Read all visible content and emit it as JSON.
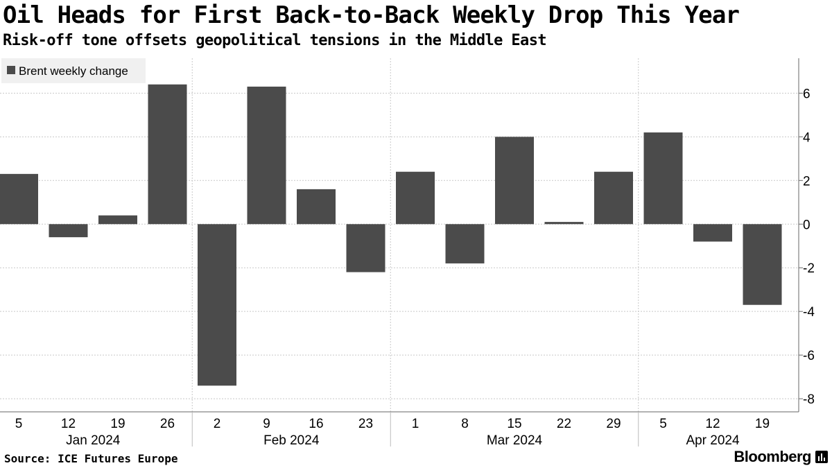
{
  "page": {
    "title": "Oil Heads for First Back-to-Back Weekly Drop This Year",
    "subtitle": "Risk-off tone offsets geopolitical tensions in the Middle East",
    "source": "Source: ICE Futures Europe",
    "brand": "Bloomberg"
  },
  "colors": {
    "bar": "#4b4b4b",
    "legend_bg": "#f0f0f0",
    "grid": "#c8c8c8",
    "axis": "#666666"
  },
  "chart_data": {
    "type": "bar",
    "title": "Oil Heads for First Back-to-Back Weekly Drop This Year",
    "subtitle": "Risk-off tone offsets geopolitical tensions in the Middle East",
    "series": [
      {
        "name": "Brent weekly change",
        "values": [
          2.3,
          -0.6,
          0.4,
          6.4,
          -7.4,
          6.3,
          1.6,
          -2.2,
          2.4,
          -1.8,
          4.0,
          0.1,
          2.4,
          4.2,
          -0.8,
          -3.7
        ]
      }
    ],
    "categories": [
      "5",
      "12",
      "19",
      "26",
      "2",
      "9",
      "16",
      "23",
      "1",
      "8",
      "15",
      "22",
      "29",
      "5",
      "12",
      "19"
    ],
    "month_labels": [
      {
        "label": "Jan 2024",
        "first_index": 0,
        "last_index": 3
      },
      {
        "label": "Feb 2024",
        "first_index": 4,
        "last_index": 7
      },
      {
        "label": "Mar 2024",
        "first_index": 8,
        "last_index": 12
      },
      {
        "label": "Apr 2024",
        "first_index": 13,
        "last_index": 15
      }
    ],
    "ylim": [
      -8.6,
      7.6
    ],
    "yticks": [
      6,
      4,
      2,
      0,
      -2,
      -4,
      -6,
      -8
    ],
    "ytick_labels": [
      "6",
      "4",
      "2",
      "0",
      "-2",
      "-4",
      "-6",
      "-8"
    ],
    "xlabel": "",
    "ylabel": "",
    "grid": true,
    "legend": "top-left",
    "y_axis_side": "right"
  }
}
